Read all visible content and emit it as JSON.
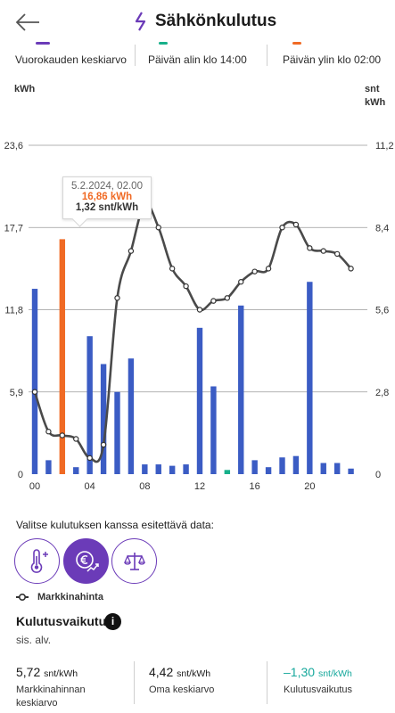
{
  "header": {
    "title": "Sähkönkulutus",
    "back_icon": "arrow-left-icon",
    "title_icon": "lightning-icon"
  },
  "top_stats": [
    {
      "label": "Vuorokauden keskiarvo",
      "color": "#6b3bb8"
    },
    {
      "label": "Päivän alin klo 14:00",
      "color": "#17b08a"
    },
    {
      "label": "Päivän ylin klo 02:00",
      "color": "#f06a24"
    }
  ],
  "chart": {
    "left_unit": "kWh",
    "right_unit_line1": "snt",
    "right_unit_line2": "kWh",
    "left_ticks": [
      "23,6",
      "17,7",
      "11,8",
      "5,9",
      "0"
    ],
    "right_ticks": [
      "11,2",
      "8,4",
      "5,6",
      "2,8",
      "0"
    ],
    "x_ticks": [
      "00",
      "04",
      "08",
      "12",
      "16",
      "20"
    ],
    "tooltip": {
      "date": "5.2.2024, 02.00",
      "kwh": "16,86 kWh",
      "price": "1,32 snt/kWh"
    }
  },
  "chart_data": {
    "type": "bar",
    "categories": [
      "00",
      "01",
      "02",
      "03",
      "04",
      "05",
      "06",
      "07",
      "08",
      "09",
      "10",
      "11",
      "12",
      "13",
      "14",
      "15",
      "16",
      "17",
      "18",
      "19",
      "20",
      "21",
      "22",
      "23"
    ],
    "series": [
      {
        "values": [
          13.3,
          1.0,
          16.86,
          0.5,
          9.9,
          7.9,
          5.9,
          8.3,
          0.7,
          0.7,
          0.6,
          0.7,
          10.5,
          6.3,
          0.3,
          12.1,
          1.0,
          0.5,
          1.2,
          1.3,
          13.8,
          0.8,
          0.8,
          0.4
        ],
        "color": "#3b5cc4",
        "highlight_index": 2,
        "highlight_color": "#f06a24",
        "min_index": 14,
        "min_color": "#17b08a"
      },
      {
        "values": [
          2.8,
          1.45,
          1.32,
          1.2,
          0.55,
          1.0,
          6.0,
          7.6,
          9.2,
          8.4,
          7.0,
          6.4,
          5.6,
          5.9,
          6.0,
          6.55,
          6.9,
          7.0,
          8.4,
          8.5,
          7.7,
          7.6,
          7.5,
          7.0
        ],
        "color": "#4a4a4a",
        "axis": "right"
      }
    ],
    "ylim": [
      0,
      23.6
    ],
    "ylim_right": [
      0,
      11.2
    ]
  },
  "data_select": {
    "label": "Valitse kulutuksen kanssa esitettävä data:",
    "options": [
      {
        "icon": "thermometer-icon",
        "active": false
      },
      {
        "icon": "price-euro-icon",
        "active": true
      },
      {
        "icon": "scales-icon",
        "active": false
      }
    ]
  },
  "legend": {
    "label": "Markkinahinta",
    "icon": "line-marker-icon"
  },
  "impact": {
    "title": "Kulutusvaikutus",
    "info_icon": "i",
    "vat": "sis. alv."
  },
  "bottom_stats": [
    {
      "value": "5,72",
      "unit": "snt/kWh",
      "label_line1": "Markkinahinnan",
      "label_line2": "keskiarvo",
      "color": "#1a1a1a"
    },
    {
      "value": "4,42",
      "unit": "snt/kWh",
      "label_line1": "Oma keskiarvo",
      "color": "#1a1a1a"
    },
    {
      "value": "–1,30",
      "unit": "snt/kWh",
      "label_line1": "Kulutusvaikutus",
      "color": "#17a89c"
    }
  ]
}
